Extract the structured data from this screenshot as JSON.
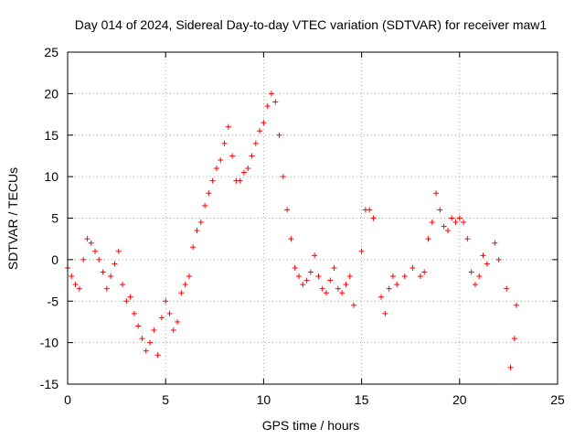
{
  "chart_data": {
    "type": "scatter",
    "title": "Day 014 of 2024, Sidereal Day-to-day VTEC variation (SDTVAR) for receiver maw1",
    "xlabel": "GPS time / hours",
    "ylabel": "SDTVAR / TECUs",
    "xlim": [
      0,
      25
    ],
    "ylim": [
      -15,
      25
    ],
    "x_ticks": [
      "0",
      "5",
      "10",
      "15",
      "20",
      "25"
    ],
    "y_ticks": [
      "-15",
      "-10",
      "-5",
      "0",
      "5",
      "10",
      "15",
      "20",
      "25"
    ],
    "grid": true,
    "marker": "+",
    "series_color": "#ff0000",
    "series": [
      {
        "name": "SDTVAR",
        "x": [
          0.0,
          0.2,
          0.4,
          0.6,
          0.8,
          1.0,
          1.2,
          1.4,
          1.6,
          1.8,
          2.0,
          2.2,
          2.4,
          2.6,
          2.8,
          3.0,
          3.2,
          3.4,
          3.6,
          3.8,
          4.0,
          4.2,
          4.4,
          4.6,
          4.8,
          5.0,
          5.2,
          5.4,
          5.6,
          5.8,
          6.0,
          6.2,
          6.4,
          6.6,
          6.8,
          7.0,
          7.2,
          7.4,
          7.6,
          7.8,
          8.0,
          8.2,
          8.4,
          8.6,
          8.8,
          9.0,
          9.2,
          9.4,
          9.6,
          9.8,
          10.0,
          10.2,
          10.4,
          10.6,
          10.8,
          11.0,
          11.2,
          11.4,
          11.6,
          11.8,
          12.0,
          12.2,
          12.4,
          12.6,
          12.8,
          13.0,
          13.2,
          13.4,
          13.6,
          13.8,
          14.0,
          14.2,
          14.4,
          14.6,
          15.0,
          15.2,
          15.4,
          15.6,
          16.0,
          16.2,
          16.4,
          16.6,
          16.8,
          17.2,
          17.6,
          18.0,
          18.2,
          18.4,
          18.6,
          18.8,
          19.0,
          19.2,
          19.4,
          19.6,
          19.8,
          20.0,
          20.2,
          20.4,
          20.6,
          20.8,
          21.0,
          21.2,
          21.4,
          21.8,
          22.0,
          22.4,
          22.6,
          22.8,
          22.9
        ],
        "y": [
          -1.0,
          -2.0,
          -3.0,
          -3.5,
          0.0,
          2.5,
          2.0,
          1.0,
          0.0,
          -1.5,
          -3.5,
          -2.0,
          -0.5,
          1.0,
          -3.0,
          -5.0,
          -4.5,
          -6.5,
          -8.0,
          -9.5,
          -11.0,
          -10.0,
          -8.5,
          -11.5,
          -7.0,
          -5.0,
          -6.5,
          -8.5,
          -7.5,
          -4.0,
          -3.0,
          -2.0,
          1.5,
          3.5,
          4.5,
          6.5,
          8.0,
          9.5,
          11.0,
          12.0,
          14.0,
          16.0,
          12.5,
          9.5,
          9.5,
          10.5,
          11.0,
          12.5,
          14.0,
          15.5,
          16.5,
          18.5,
          20.0,
          19.0,
          15.0,
          10.0,
          6.0,
          2.5,
          -1.0,
          -2.0,
          -3.0,
          -2.5,
          -1.5,
          0.5,
          -2.0,
          -3.5,
          -4.0,
          -2.5,
          -1.0,
          -3.5,
          -4.0,
          -3.0,
          -2.0,
          -5.5,
          1.0,
          6.0,
          6.0,
          5.0,
          -4.5,
          -6.5,
          -3.5,
          -2.0,
          -3.0,
          -2.0,
          -1.0,
          -2.0,
          -1.5,
          2.5,
          4.5,
          8.0,
          6.0,
          4.0,
          3.5,
          5.0,
          4.5,
          5.0,
          4.5,
          2.5,
          -1.5,
          -3.0,
          -2.0,
          0.5,
          -0.5,
          2.0,
          0.0,
          -3.5,
          -13.0,
          -9.5,
          -5.5
        ]
      }
    ]
  }
}
